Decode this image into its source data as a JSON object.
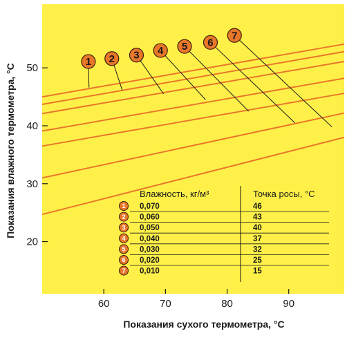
{
  "chart_data": {
    "type": "line",
    "xlabel": "Показания сухого термометра, °C",
    "ylabel": "Показания влажного термометра, °C",
    "x_ticks": [
      60,
      70,
      80,
      90
    ],
    "y_ticks": [
      20,
      30,
      40,
      50
    ],
    "xlim": [
      50,
      99
    ],
    "ylim": [
      11,
      61
    ],
    "grid": false,
    "series": [
      {
        "name": "1",
        "x": [
          50,
          99
        ],
        "y": [
          45.0,
          54.1
        ],
        "label_x": 57.5,
        "label_y": 51.1,
        "end_x": 57.6,
        "end_y": 46.6
      },
      {
        "name": "2",
        "x": [
          50,
          99
        ],
        "y": [
          43.7,
          52.8
        ],
        "label_x": 61.3,
        "label_y": 51.6,
        "end_x": 63.0,
        "end_y": 46.1
      },
      {
        "name": "3",
        "x": [
          50,
          99
        ],
        "y": [
          42.1,
          51.1
        ],
        "label_x": 65.3,
        "label_y": 52.2,
        "end_x": 69.7,
        "end_y": 45.5
      },
      {
        "name": "4",
        "x": [
          50,
          99
        ],
        "y": [
          39.1,
          48.2
        ],
        "label_x": 69.2,
        "label_y": 53.0,
        "end_x": 76.5,
        "end_y": 44.5
      },
      {
        "name": "5",
        "x": [
          50,
          99
        ],
        "y": [
          36.5,
          45.6
        ],
        "label_x": 73.1,
        "label_y": 53.7,
        "end_x": 83.5,
        "end_y": 42.5
      },
      {
        "name": "6",
        "x": [
          50,
          99
        ],
        "y": [
          31.0,
          42.2
        ],
        "label_x": 77.3,
        "label_y": 54.4,
        "end_x": 91.0,
        "end_y": 40.5
      },
      {
        "name": "7",
        "x": [
          50,
          99
        ],
        "y": [
          24.7,
          38.0
        ],
        "label_x": 81.2,
        "label_y": 55.6,
        "end_x": 97.0,
        "end_y": 39.8
      }
    ],
    "table": {
      "headers": [
        "Влажность, кг/м³",
        "Точка росы, °C"
      ],
      "rows": [
        {
          "num": "1",
          "humidity": "0,070",
          "dew": "46"
        },
        {
          "num": "2",
          "humidity": "0,060",
          "dew": "43"
        },
        {
          "num": "3",
          "humidity": "0,050",
          "dew": "40"
        },
        {
          "num": "4",
          "humidity": "0,040",
          "dew": "37"
        },
        {
          "num": "5",
          "humidity": "0,030",
          "dew": "32"
        },
        {
          "num": "6",
          "humidity": "0,020",
          "dew": "25"
        },
        {
          "num": "7",
          "humidity": "0,010",
          "dew": "15"
        }
      ]
    }
  },
  "colors": {
    "background": "#fef048",
    "line": "#e9772a",
    "marker_fill": "#e9772a",
    "marker_stroke": "#3a1e0a",
    "text": "#1a1a1a",
    "table_rule": "#1a1a1a"
  }
}
